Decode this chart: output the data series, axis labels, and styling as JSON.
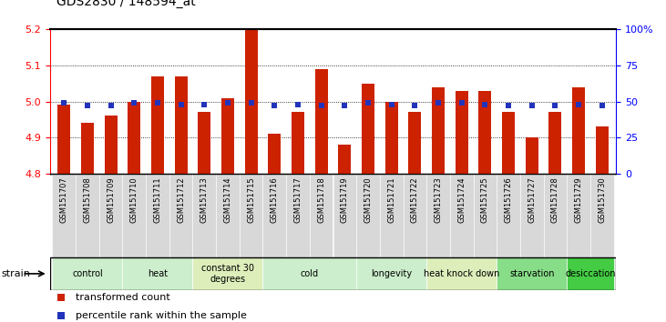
{
  "title": "GDS2830 / 148594_at",
  "samples": [
    "GSM151707",
    "GSM151708",
    "GSM151709",
    "GSM151710",
    "GSM151711",
    "GSM151712",
    "GSM151713",
    "GSM151714",
    "GSM151715",
    "GSM151716",
    "GSM151717",
    "GSM151718",
    "GSM151719",
    "GSM151720",
    "GSM151721",
    "GSM151722",
    "GSM151723",
    "GSM151724",
    "GSM151725",
    "GSM151726",
    "GSM151727",
    "GSM151728",
    "GSM151729",
    "GSM151730"
  ],
  "bar_values": [
    4.99,
    4.94,
    4.96,
    5.0,
    5.07,
    5.07,
    4.97,
    5.01,
    5.2,
    4.91,
    4.97,
    5.09,
    4.88,
    5.05,
    5.0,
    4.97,
    5.04,
    5.03,
    5.03,
    4.97,
    4.9,
    4.97,
    5.04,
    4.93
  ],
  "percentile_values": [
    49,
    47,
    47,
    49,
    49,
    48,
    48,
    49,
    49,
    47,
    48,
    47,
    47,
    49,
    48,
    47,
    49,
    49,
    48,
    47,
    47,
    47,
    48,
    47
  ],
  "bar_color": "#cc2200",
  "dot_color": "#2233bb",
  "ylim_left": [
    4.8,
    5.2
  ],
  "ylim_right": [
    0,
    100
  ],
  "yticks_left": [
    4.8,
    4.9,
    5.0,
    5.1,
    5.2
  ],
  "yticks_right": [
    0,
    25,
    50,
    75,
    100
  ],
  "ytick_labels_right": [
    "0",
    "25",
    "50",
    "75",
    "100%"
  ],
  "grid_values": [
    4.9,
    5.0,
    5.1
  ],
  "groups": [
    {
      "label": "control",
      "start": 0,
      "end": 2,
      "color": "#cceecc"
    },
    {
      "label": "heat",
      "start": 3,
      "end": 5,
      "color": "#cceecc"
    },
    {
      "label": "constant 30\ndegrees",
      "start": 6,
      "end": 8,
      "color": "#ddeebb"
    },
    {
      "label": "cold",
      "start": 9,
      "end": 12,
      "color": "#cceecc"
    },
    {
      "label": "longevity",
      "start": 13,
      "end": 15,
      "color": "#cceecc"
    },
    {
      "label": "heat knock down",
      "start": 16,
      "end": 18,
      "color": "#ddeebb"
    },
    {
      "label": "starvation",
      "start": 19,
      "end": 21,
      "color": "#88dd88"
    },
    {
      "label": "desiccation",
      "start": 22,
      "end": 23,
      "color": "#44cc44"
    }
  ],
  "legend_items": [
    {
      "label": "transformed count",
      "color": "#cc2200"
    },
    {
      "label": "percentile rank within the sample",
      "color": "#2233bb"
    }
  ],
  "bar_width": 0.55
}
